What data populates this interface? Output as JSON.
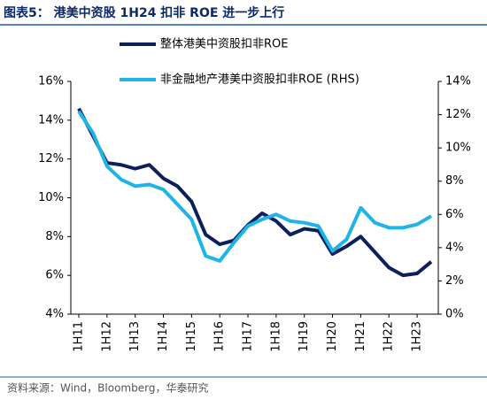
{
  "chart_data": {
    "type": "line",
    "title": "图表5： 港美中资股 1H24 扣非 ROE 进一步上行",
    "source": "资料来源：Wind，Bloomberg，华泰研究",
    "categories": [
      "1H11",
      null,
      "1H12",
      null,
      "1H13",
      null,
      "1H14",
      null,
      "1H15",
      null,
      "1H16",
      null,
      "1H17",
      null,
      "1H18",
      null,
      "1H19",
      null,
      "1H20",
      null,
      "1H21",
      null,
      "1H22",
      null,
      "1H23",
      null
    ],
    "series": [
      {
        "name": "整体港美中资股扣非ROE",
        "color": "#0d1f5c",
        "values": [
          14.6,
          13.2,
          11.8,
          11.7,
          11.5,
          11.7,
          11.0,
          10.6,
          9.8,
          8.1,
          7.6,
          7.8,
          8.6,
          9.2,
          8.8,
          8.1,
          8.4,
          8.3,
          7.1,
          7.5,
          8.0,
          7.2,
          6.4,
          6.0,
          6.1,
          6.7
        ]
      },
      {
        "name": "非金融地产港美中资股扣非ROE (RHS)",
        "color": "#1fb4e8",
        "axis": "y2",
        "values": [
          12.2,
          10.9,
          8.9,
          8.1,
          7.7,
          7.8,
          7.5,
          6.6,
          5.7,
          3.5,
          3.2,
          4.3,
          5.3,
          5.7,
          6.0,
          5.6,
          5.5,
          5.3,
          3.8,
          4.5,
          6.4,
          5.5,
          5.2,
          5.2,
          5.4,
          5.9
        ]
      }
    ],
    "ylim": [
      4,
      16
    ],
    "yticks": [
      {
        "value": 4,
        "label": "4%"
      },
      {
        "value": 6,
        "label": "6%"
      },
      {
        "value": 8,
        "label": "8%"
      },
      {
        "value": 10,
        "label": "10%"
      },
      {
        "value": 12,
        "label": "12%"
      },
      {
        "value": 14,
        "label": "14%"
      },
      {
        "value": 16,
        "label": "16%"
      }
    ],
    "y2lim": [
      0,
      14
    ],
    "y2ticks": [
      {
        "value": 0,
        "label": "0%"
      },
      {
        "value": 2,
        "label": "2%"
      },
      {
        "value": 4,
        "label": "4%"
      },
      {
        "value": 6,
        "label": "6%"
      },
      {
        "value": 8,
        "label": "8%"
      },
      {
        "value": 10,
        "label": "10%"
      },
      {
        "value": 12,
        "label": "12%"
      },
      {
        "value": 14,
        "label": "14%"
      }
    ]
  }
}
